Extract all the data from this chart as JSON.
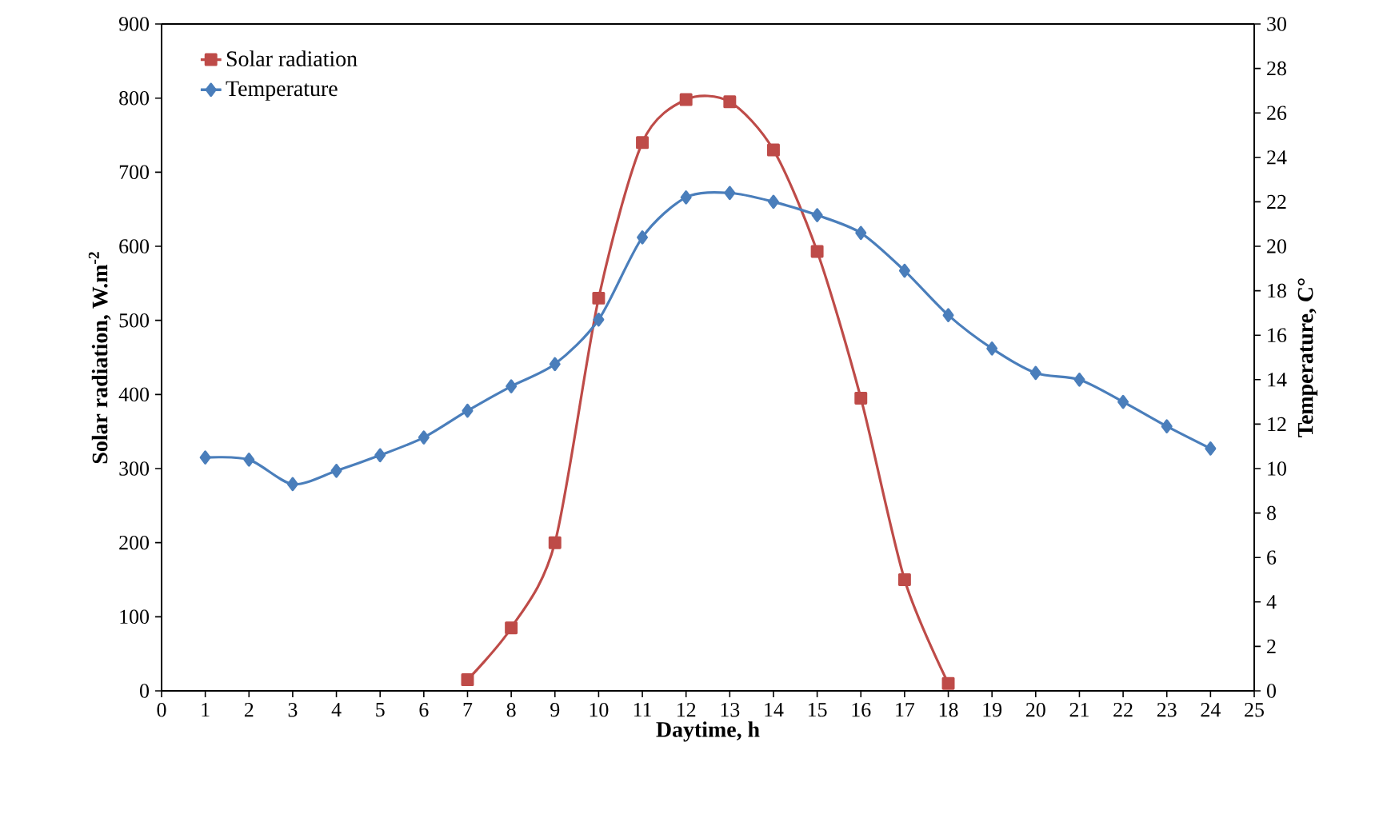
{
  "chart_data": {
    "type": "line",
    "xlabel": "Daytime, h",
    "ylabel": "Solar radiation,  W.m$^{-2}$",
    "y2label": "Temperature, C°",
    "xlim": [
      0,
      25
    ],
    "xticks": [
      0,
      1,
      2,
      3,
      4,
      5,
      6,
      7,
      8,
      9,
      10,
      11,
      12,
      13,
      14,
      15,
      16,
      17,
      18,
      19,
      20,
      21,
      22,
      23,
      24,
      25
    ],
    "ylim": [
      0,
      900
    ],
    "yticks": [
      0,
      100,
      200,
      300,
      400,
      500,
      600,
      700,
      800,
      900
    ],
    "y2lim": [
      0,
      30
    ],
    "y2ticks": [
      0,
      2,
      4,
      6,
      8,
      10,
      12,
      14,
      16,
      18,
      20,
      22,
      24,
      26,
      28,
      30
    ],
    "grid": false,
    "legend": "top left",
    "line_style": "solid",
    "series": [
      {
        "name": "Solar radiation",
        "color": "#be4b48",
        "marker": "square",
        "x": [
          7,
          8,
          9,
          10,
          11,
          12,
          13,
          14,
          15,
          16,
          17,
          18
        ],
        "values": [
          15,
          85,
          200,
          530,
          740,
          798,
          795,
          730,
          593,
          395,
          150,
          10
        ]
      },
      {
        "name": "Temperature",
        "color": "#4a7ebb",
        "marker": "diamond",
        "axis": "y2",
        "x": [
          1,
          2,
          3,
          4,
          5,
          6,
          7,
          8,
          9,
          10,
          11,
          12,
          13,
          14,
          15,
          16,
          17,
          18,
          19,
          20,
          21,
          22,
          23,
          24
        ],
        "values": [
          10.5,
          10.4,
          9.3,
          9.9,
          10.6,
          11.4,
          12.6,
          13.7,
          14.7,
          16.7,
          20.4,
          22.2,
          22.4,
          22.0,
          21.4,
          20.6,
          18.9,
          16.9,
          15.4,
          14.3,
          14.0,
          13.0,
          11.9,
          10.9
        ]
      }
    ]
  }
}
